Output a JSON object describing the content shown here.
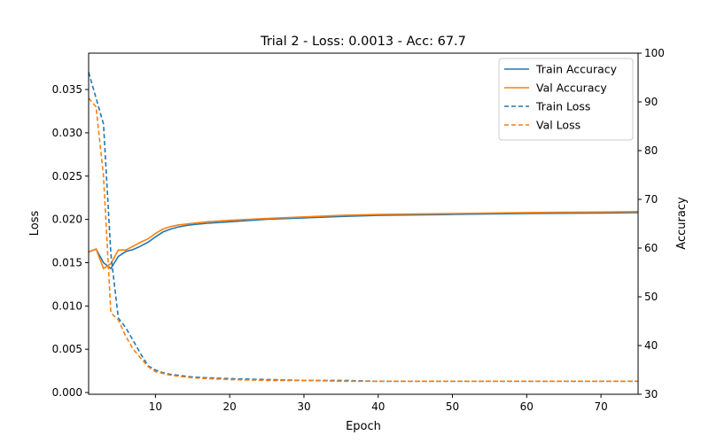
{
  "chart_data": {
    "type": "line",
    "title": "Trial 2 - Loss: 0.0013 - Acc: 67.7",
    "xlabel": "Epoch",
    "ylabel_left": "Loss",
    "ylabel_right": "Accuracy",
    "xlim": [
      1,
      75
    ],
    "ylim_left": [
      -0.0002,
      0.0392
    ],
    "ylim_right": [
      30,
      100
    ],
    "xticks": [
      10,
      20,
      30,
      40,
      50,
      60,
      70
    ],
    "yticks_left": [
      0.0,
      0.005,
      0.01,
      0.015,
      0.02,
      0.025,
      0.03,
      0.035
    ],
    "yticks_left_labels": [
      "0.000",
      "0.005",
      "0.010",
      "0.015",
      "0.020",
      "0.025",
      "0.030",
      "0.035"
    ],
    "yticks_right": [
      30,
      40,
      50,
      60,
      70,
      80,
      90,
      100
    ],
    "grid": false,
    "legend_position": "top-right",
    "colors": {
      "train": "#1f77b4",
      "val": "#ff7f0e"
    },
    "series": [
      {
        "name": "Train Accuracy",
        "axis": "right",
        "style": "solid",
        "color": "#1f77b4",
        "points": [
          [
            1,
            59.2
          ],
          [
            2,
            59.8
          ],
          [
            3,
            57.0
          ],
          [
            4,
            55.8
          ],
          [
            5,
            58.3
          ],
          [
            6,
            59.3
          ],
          [
            7,
            59.7
          ],
          [
            8,
            60.4
          ],
          [
            9,
            61.2
          ],
          [
            10,
            62.3
          ],
          [
            11,
            63.3
          ],
          [
            12,
            63.9
          ],
          [
            13,
            64.3
          ],
          [
            14,
            64.6
          ],
          [
            15,
            64.8
          ],
          [
            17,
            65.1
          ],
          [
            20,
            65.4
          ],
          [
            25,
            65.9
          ],
          [
            30,
            66.2
          ],
          [
            35,
            66.5
          ],
          [
            40,
            66.7
          ],
          [
            50,
            66.9
          ],
          [
            60,
            67.1
          ],
          [
            70,
            67.2
          ],
          [
            75,
            67.3
          ]
        ]
      },
      {
        "name": "Val Accuracy",
        "axis": "right",
        "style": "solid",
        "color": "#ff7f0e",
        "points": [
          [
            1,
            59.2
          ],
          [
            2,
            59.8
          ],
          [
            3,
            55.8
          ],
          [
            4,
            56.8
          ],
          [
            5,
            59.6
          ],
          [
            6,
            59.6
          ],
          [
            7,
            60.4
          ],
          [
            8,
            61.2
          ],
          [
            9,
            61.9
          ],
          [
            10,
            63.0
          ],
          [
            11,
            63.9
          ],
          [
            12,
            64.4
          ],
          [
            13,
            64.7
          ],
          [
            14,
            64.9
          ],
          [
            15,
            65.1
          ],
          [
            17,
            65.4
          ],
          [
            20,
            65.7
          ],
          [
            25,
            66.1
          ],
          [
            30,
            66.4
          ],
          [
            35,
            66.7
          ],
          [
            40,
            66.9
          ],
          [
            50,
            67.1
          ],
          [
            60,
            67.3
          ],
          [
            70,
            67.4
          ],
          [
            75,
            67.5
          ]
        ]
      },
      {
        "name": "Train Loss",
        "axis": "left",
        "style": "dashed",
        "color": "#1f77b4",
        "points": [
          [
            1,
            0.037
          ],
          [
            2,
            0.034
          ],
          [
            3,
            0.031
          ],
          [
            4,
            0.016
          ],
          [
            5,
            0.0086
          ],
          [
            6,
            0.0075
          ],
          [
            7,
            0.006
          ],
          [
            8,
            0.0045
          ],
          [
            9,
            0.0031
          ],
          [
            10,
            0.0026
          ],
          [
            11,
            0.0023
          ],
          [
            12,
            0.0021
          ],
          [
            13,
            0.002
          ],
          [
            14,
            0.0019
          ],
          [
            15,
            0.0018
          ],
          [
            17,
            0.0017
          ],
          [
            20,
            0.0016
          ],
          [
            25,
            0.0015
          ],
          [
            30,
            0.0014
          ],
          [
            35,
            0.0014
          ],
          [
            40,
            0.0013
          ],
          [
            50,
            0.0013
          ],
          [
            60,
            0.0013
          ],
          [
            70,
            0.0013
          ],
          [
            75,
            0.0013
          ]
        ]
      },
      {
        "name": "Val Loss",
        "axis": "left",
        "style": "dashed",
        "color": "#ff7f0e",
        "points": [
          [
            1,
            0.034
          ],
          [
            2,
            0.033
          ],
          [
            3,
            0.025
          ],
          [
            4,
            0.0092
          ],
          [
            5,
            0.0084
          ],
          [
            6,
            0.0065
          ],
          [
            7,
            0.005
          ],
          [
            8,
            0.004
          ],
          [
            9,
            0.003
          ],
          [
            10,
            0.0024
          ],
          [
            11,
            0.0022
          ],
          [
            12,
            0.002
          ],
          [
            13,
            0.0019
          ],
          [
            14,
            0.0018
          ],
          [
            15,
            0.0017
          ],
          [
            17,
            0.0016
          ],
          [
            20,
            0.0015
          ],
          [
            25,
            0.0014
          ],
          [
            30,
            0.0014
          ],
          [
            35,
            0.0013
          ],
          [
            40,
            0.0013
          ],
          [
            50,
            0.0013
          ],
          [
            60,
            0.0013
          ],
          [
            70,
            0.0013
          ],
          [
            75,
            0.0013
          ]
        ]
      }
    ]
  }
}
